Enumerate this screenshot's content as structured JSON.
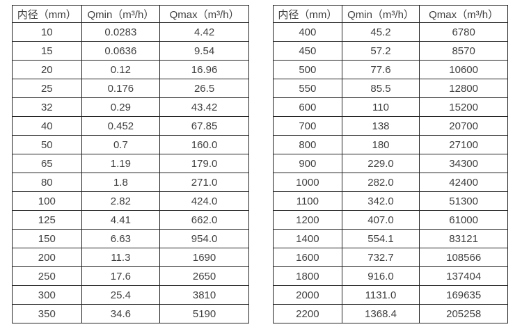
{
  "colors": {
    "background": "#ffffff",
    "border": "#222222",
    "text": "#3f3f3f"
  },
  "chart_data": [
    {
      "type": "table",
      "name": "flow-spec-table-left",
      "headers": [
        "内径（mm）",
        "Qmin（m³/h）",
        "Qmax（m³/h）"
      ],
      "rows": [
        [
          "10",
          "0.0283",
          "4.42"
        ],
        [
          "15",
          "0.0636",
          "9.54"
        ],
        [
          "20",
          "0.12",
          "16.96"
        ],
        [
          "25",
          "0.176",
          "26.5"
        ],
        [
          "32",
          "0.29",
          "43.42"
        ],
        [
          "40",
          "0.452",
          "67.85"
        ],
        [
          "50",
          "0.7",
          "160.0"
        ],
        [
          "65",
          "1.19",
          "179.0"
        ],
        [
          "80",
          "1.8",
          "271.0"
        ],
        [
          "100",
          "2.82",
          "424.0"
        ],
        [
          "125",
          "4.41",
          "662.0"
        ],
        [
          "150",
          "6.63",
          "954.0"
        ],
        [
          "200",
          "11.3",
          "1690"
        ],
        [
          "250",
          "17.6",
          "2650"
        ],
        [
          "300",
          "25.4",
          "3810"
        ],
        [
          "350",
          "34.6",
          "5190"
        ]
      ]
    },
    {
      "type": "table",
      "name": "flow-spec-table-right",
      "headers": [
        "内径（mm）",
        "Qmin（m³/h）",
        "Qmax（m³/h）"
      ],
      "rows": [
        [
          "400",
          "45.2",
          "6780"
        ],
        [
          "450",
          "57.2",
          "8570"
        ],
        [
          "500",
          "77.6",
          "10600"
        ],
        [
          "550",
          "85.5",
          "12800"
        ],
        [
          "600",
          "110",
          "15200"
        ],
        [
          "700",
          "138",
          "20700"
        ],
        [
          "800",
          "180",
          "27100"
        ],
        [
          "900",
          "229.0",
          "34300"
        ],
        [
          "1000",
          "282.0",
          "42400"
        ],
        [
          "1100",
          "342.0",
          "51300"
        ],
        [
          "1200",
          "407.0",
          "61000"
        ],
        [
          "1400",
          "554.1",
          "83121"
        ],
        [
          "1600",
          "732.7",
          "108566"
        ],
        [
          "1800",
          "916.0",
          "137404"
        ],
        [
          "2000",
          "1131.0",
          "169635"
        ],
        [
          "2200",
          "1368.4",
          "205258"
        ]
      ]
    }
  ]
}
